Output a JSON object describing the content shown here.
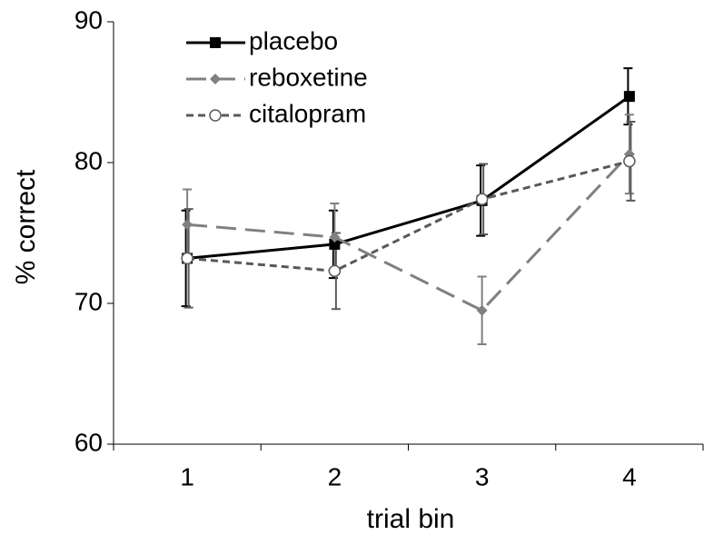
{
  "chart_data": {
    "type": "line",
    "x_label": "trial bin",
    "y_label": "% correct",
    "categories": [
      "1",
      "2",
      "3",
      "4"
    ],
    "series": [
      {
        "name": "placebo",
        "color": "#000000",
        "values": [
          73.2,
          74.2,
          77.3,
          84.7
        ],
        "errors": [
          3.4,
          2.4,
          2.5,
          2.0
        ]
      },
      {
        "name": "reboxetine",
        "color": "#808080",
        "values": [
          75.6,
          74.7,
          69.5,
          80.6
        ],
        "errors": [
          2.5,
          2.4,
          2.4,
          2.8
        ]
      },
      {
        "name": "citalopram",
        "color": "#595959",
        "values": [
          73.2,
          72.3,
          77.4,
          80.1
        ],
        "errors": [
          3.5,
          2.7,
          2.5,
          2.8
        ]
      }
    ],
    "ylim": [
      60,
      90
    ],
    "yticks": [
      60,
      70,
      80,
      90
    ],
    "legend": "upper left"
  }
}
